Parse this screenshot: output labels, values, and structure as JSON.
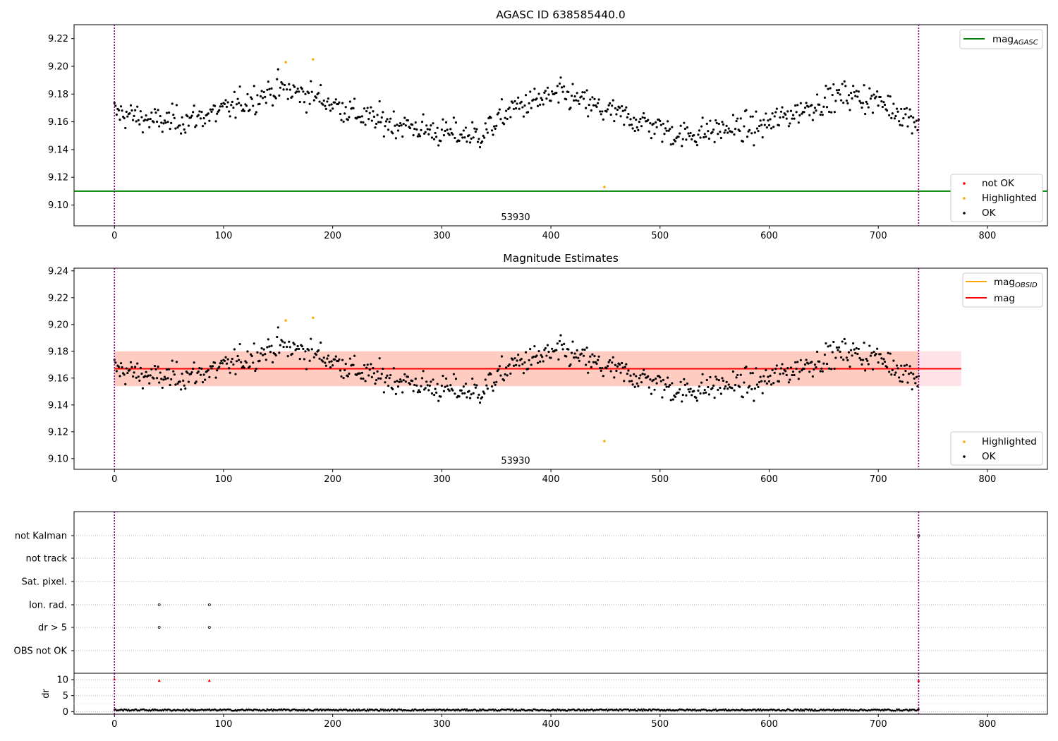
{
  "chart_data": [
    {
      "type": "scatter",
      "title": "AGASC ID 638585440.0",
      "xlim": [
        -37,
        855
      ],
      "ylim": [
        9.085,
        9.23
      ],
      "xticks": [
        0,
        100,
        200,
        300,
        400,
        500,
        600,
        700,
        800
      ],
      "yticks": [
        9.1,
        9.12,
        9.14,
        9.16,
        9.18,
        9.2,
        9.22
      ],
      "grid": false,
      "vlines": [
        0,
        737
      ],
      "hline": {
        "name": "mag",
        "subscript": "AGASC",
        "y": 9.11,
        "color": "#008000"
      },
      "annotation": {
        "text": "53930",
        "x": 368,
        "y": 9.092
      },
      "legend_top": {
        "placement": "top-right",
        "entries": [
          {
            "name": "mag",
            "subscript": "AGASC",
            "color": "#008000"
          }
        ]
      },
      "legend_bottom": {
        "placement": "bottom-right",
        "entries": [
          {
            "name": "not OK",
            "color": "#ff0000"
          },
          {
            "name": "Highlighted",
            "color": "#ffa500"
          },
          {
            "name": "OK",
            "color": "#000000"
          }
        ]
      },
      "highlighted": [
        [
          157,
          9.203
        ],
        [
          182,
          9.205
        ],
        [
          449,
          9.113
        ]
      ]
    },
    {
      "type": "scatter",
      "title": "Magnitude Estimates",
      "xlim": [
        -37,
        855
      ],
      "ylim": [
        9.092,
        9.242
      ],
      "xticks": [
        0,
        100,
        200,
        300,
        400,
        500,
        600,
        700,
        800
      ],
      "yticks": [
        9.1,
        9.12,
        9.14,
        9.16,
        9.18,
        9.2,
        9.22,
        9.24
      ],
      "grid": false,
      "vlines": [
        0,
        737
      ],
      "mag_line": {
        "name": "mag",
        "y": 9.167,
        "x_end": 776,
        "color": "#ff0000"
      },
      "mag_obsid": {
        "name": "mag",
        "subscript": "OBSID",
        "y": 9.167,
        "x_end": 737,
        "color": "#ffa500"
      },
      "band_outer": {
        "y_low": 9.154,
        "y_high": 9.18,
        "x_end": 776,
        "color": "#ffc0cb"
      },
      "band_inner": {
        "y_low": 9.154,
        "y_high": 9.18,
        "x_end": 737,
        "color": "#ffa07a"
      },
      "annotation": {
        "text": "53930",
        "x": 368,
        "y": 9.099
      },
      "legend_top": {
        "placement": "top-right",
        "entries": [
          {
            "name": "mag",
            "subscript": "OBSID",
            "color": "#ffa500"
          },
          {
            "name": "mag",
            "color": "#ff0000"
          }
        ]
      },
      "legend_bottom": {
        "placement": "bottom-right",
        "entries": [
          {
            "name": "Highlighted",
            "color": "#ffa500"
          },
          {
            "name": "OK",
            "color": "#000000"
          }
        ]
      },
      "highlighted": [
        [
          157,
          9.203
        ],
        [
          182,
          9.205
        ],
        [
          449,
          9.113
        ]
      ]
    },
    {
      "type": "scatter",
      "xlim": [
        -37,
        855
      ],
      "flag_labels": [
        "not Kalman",
        "not track",
        "Sat. pixel.",
        "Ion. rad.",
        "dr > 5",
        "OBS not OK"
      ],
      "flag_points": [
        {
          "label": "Ion. rad.",
          "x": [
            41,
            87
          ]
        },
        {
          "label": "dr > 5",
          "x": [
            41,
            87
          ]
        },
        {
          "label": "not Kalman",
          "x": [
            737
          ]
        }
      ],
      "grid": true,
      "vlines": [
        0,
        737
      ]
    },
    {
      "type": "scatter",
      "ylabel": "dr",
      "xlim": [
        -37,
        855
      ],
      "ylim": [
        -0.8,
        12
      ],
      "xticks": [
        0,
        100,
        200,
        300,
        400,
        500,
        600,
        700,
        800
      ],
      "yticks": [
        0,
        5,
        10
      ],
      "grid": true,
      "vlines": [
        0,
        737
      ],
      "series_note": "dr values near 0 to 1 for all 737 samples",
      "high_dr": [
        [
          0,
          10.2
        ],
        [
          41,
          9.8
        ],
        [
          87,
          9.8
        ],
        [
          737,
          9.8
        ]
      ]
    }
  ]
}
